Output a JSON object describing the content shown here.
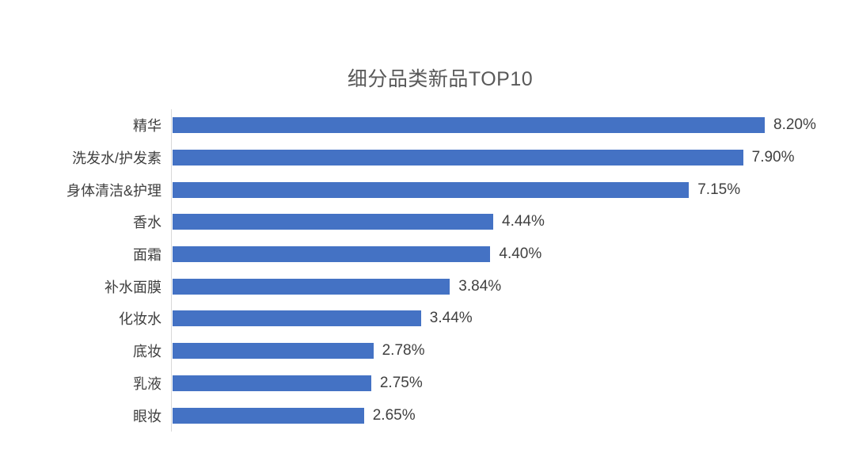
{
  "chart_data": {
    "type": "bar",
    "orientation": "horizontal",
    "title": "细分品类新品TOP10",
    "categories": [
      "精华",
      "洗发水/护发素",
      "身体清洁&护理",
      "香水",
      "面霜",
      "补水面膜",
      "化妆水",
      "底妆",
      "乳液",
      "眼妆"
    ],
    "values": [
      8.2,
      7.9,
      7.15,
      4.44,
      4.4,
      3.84,
      3.44,
      2.78,
      2.75,
      2.65
    ],
    "value_labels": [
      "8.20%",
      "7.90%",
      "7.15%",
      "4.44%",
      "4.40%",
      "3.84%",
      "3.44%",
      "2.78%",
      "2.75%",
      "2.65%"
    ],
    "xlim": [
      0,
      9
    ],
    "bar_color": "#4472C4",
    "axis_line_color": "#D9D9D9",
    "title_color": "#595959",
    "category_label_color": "#3F3F3F",
    "value_label_color": "#404040",
    "grid": false,
    "legend": false,
    "background": "#FFFFFF"
  }
}
